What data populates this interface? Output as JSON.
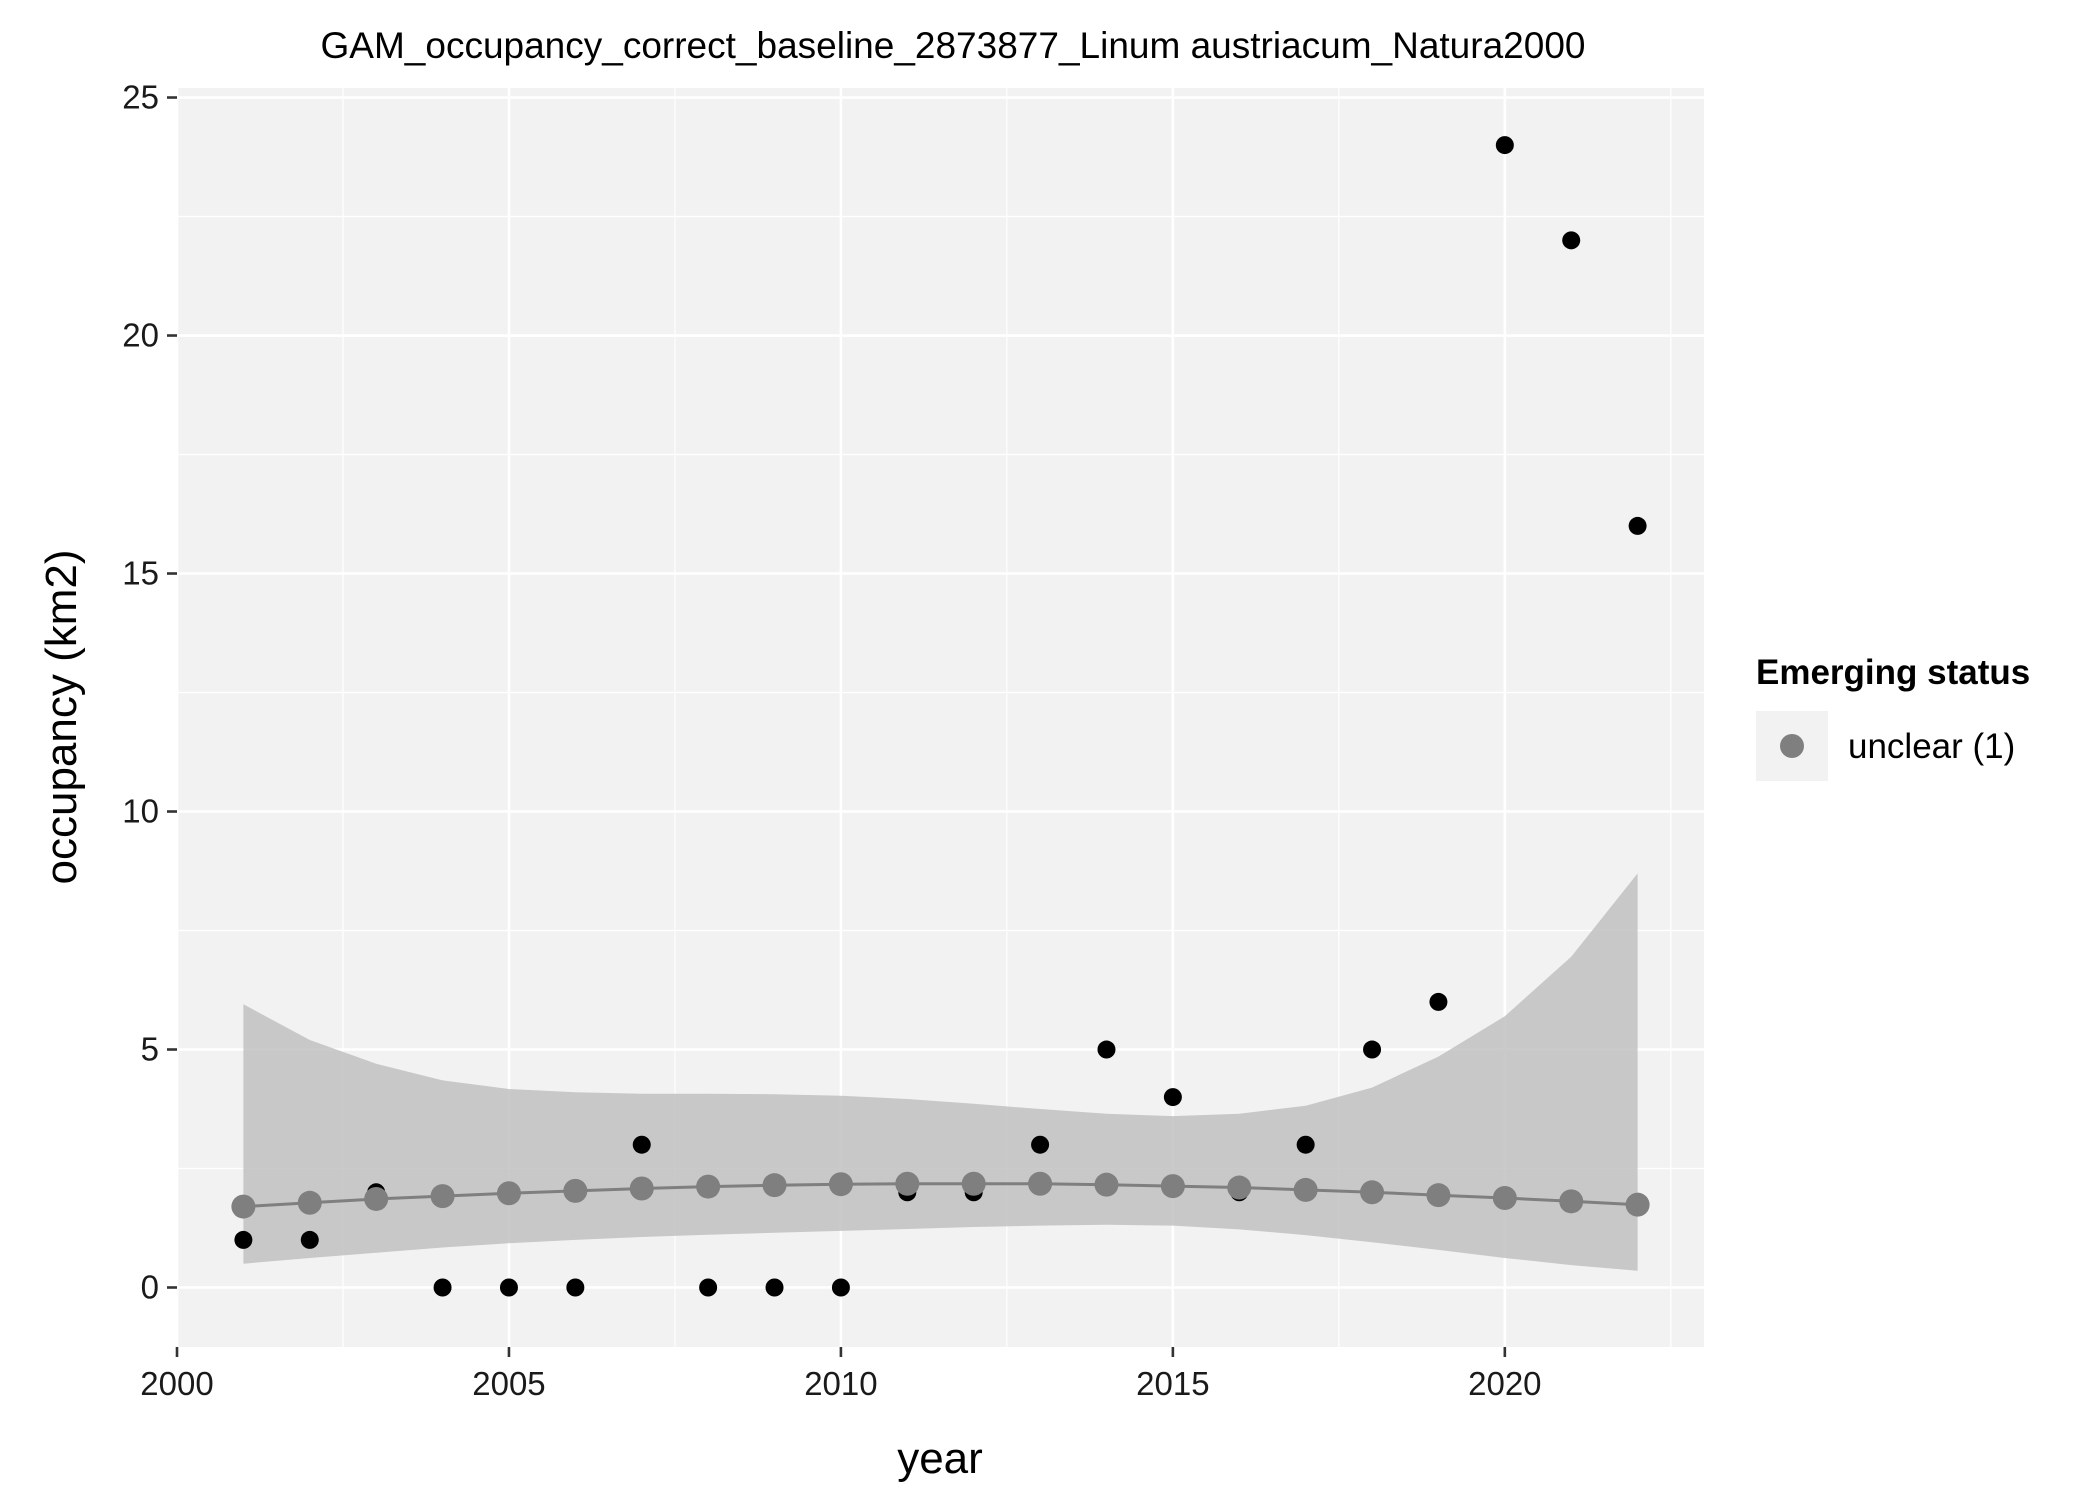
{
  "chart_data": {
    "type": "scatter",
    "title": "GAM_occupancy_correct_baseline_2873877_Linum austriacum_Natura2000",
    "xlabel": "year",
    "ylabel": "occupancy (km2)",
    "xlim": [
      2000,
      2023
    ],
    "ylim": [
      -1.25,
      25.2
    ],
    "x_ticks": [
      2000,
      2005,
      2010,
      2015,
      2020
    ],
    "y_ticks": [
      0,
      5,
      10,
      15,
      20,
      25
    ],
    "grid": true,
    "legend": {
      "title": "Emerging status",
      "position": "right",
      "entries": [
        {
          "label": "unclear (1)",
          "color": "#7f7f7f"
        }
      ]
    },
    "colors": {
      "panel_background": "#f2f2f2",
      "grid": "#ffffff",
      "observed_points": "#000000",
      "fit_points": "#7f7f7f",
      "fit_line": "#7f7f7f",
      "confidence_band": "#bdbdbd"
    },
    "observed": {
      "x": [
        2001,
        2002,
        2003,
        2004,
        2005,
        2006,
        2007,
        2008,
        2009,
        2010,
        2011,
        2012,
        2013,
        2014,
        2015,
        2016,
        2017,
        2018,
        2019,
        2020,
        2021,
        2022
      ],
      "y": [
        1,
        1,
        2,
        0,
        0,
        0,
        3,
        0,
        0,
        0,
        2,
        2,
        3,
        5,
        4,
        2,
        3,
        5,
        6,
        24,
        22,
        16
      ]
    },
    "fit": {
      "x": [
        2001,
        2002,
        2003,
        2004,
        2005,
        2006,
        2007,
        2008,
        2009,
        2010,
        2011,
        2012,
        2013,
        2014,
        2015,
        2016,
        2017,
        2018,
        2019,
        2020,
        2021,
        2022
      ],
      "y": [
        1.7,
        1.78,
        1.86,
        1.92,
        1.98,
        2.03,
        2.08,
        2.12,
        2.15,
        2.17,
        2.18,
        2.18,
        2.18,
        2.16,
        2.13,
        2.1,
        2.05,
        2.0,
        1.94,
        1.88,
        1.81,
        1.74
      ],
      "lower": [
        0.5,
        0.62,
        0.73,
        0.84,
        0.93,
        1.0,
        1.06,
        1.11,
        1.15,
        1.19,
        1.23,
        1.27,
        1.3,
        1.32,
        1.3,
        1.22,
        1.1,
        0.95,
        0.79,
        0.62,
        0.47,
        0.35
      ],
      "upper": [
        5.95,
        5.2,
        4.7,
        4.35,
        4.17,
        4.1,
        4.07,
        4.07,
        4.06,
        4.03,
        3.96,
        3.86,
        3.75,
        3.65,
        3.6,
        3.65,
        3.82,
        4.2,
        4.85,
        5.7,
        6.95,
        8.7
      ]
    }
  }
}
